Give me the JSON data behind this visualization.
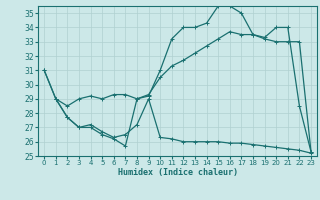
{
  "title": "",
  "xlabel": "Humidex (Indice chaleur)",
  "ylabel": "",
  "bg_color": "#cce8e8",
  "line_color": "#1a7070",
  "grid_color": "#b0d0d0",
  "xlim": [
    -0.5,
    23.5
  ],
  "ylim": [
    25,
    35.5
  ],
  "yticks": [
    25,
    26,
    27,
    28,
    29,
    30,
    31,
    32,
    33,
    34,
    35
  ],
  "xticks": [
    0,
    1,
    2,
    3,
    4,
    5,
    6,
    7,
    8,
    9,
    10,
    11,
    12,
    13,
    14,
    15,
    16,
    17,
    18,
    19,
    20,
    21,
    22,
    23
  ],
  "line1_x": [
    0,
    1,
    2,
    3,
    4,
    5,
    6,
    7,
    8,
    9,
    10,
    11,
    12,
    13,
    14,
    15,
    16,
    17,
    18,
    19,
    20,
    21,
    22,
    23
  ],
  "line1_y": [
    31,
    29,
    27.7,
    27,
    27,
    26.5,
    26.2,
    25.7,
    29,
    29.2,
    31,
    33.2,
    34,
    34,
    34.3,
    35.5,
    35.5,
    35,
    33.5,
    33.3,
    34,
    34,
    28.5,
    25.3
  ],
  "line2_x": [
    0,
    1,
    2,
    3,
    4,
    5,
    6,
    7,
    8,
    9,
    10,
    11,
    12,
    13,
    14,
    15,
    16,
    17,
    18,
    19,
    20,
    21,
    22,
    23
  ],
  "line2_y": [
    31,
    29,
    28.5,
    29,
    29.2,
    29,
    29.3,
    29.3,
    29,
    29.3,
    30.5,
    31.3,
    31.7,
    32.2,
    32.7,
    33.2,
    33.7,
    33.5,
    33.5,
    33.2,
    33,
    33,
    33,
    25.3
  ],
  "line3_x": [
    1,
    2,
    3,
    4,
    5,
    6,
    7,
    8,
    9,
    10,
    11,
    12,
    13,
    14,
    15,
    16,
    17,
    18,
    19,
    20,
    21,
    22,
    23
  ],
  "line3_y": [
    29,
    27.7,
    27,
    27.2,
    26.7,
    26.3,
    26.5,
    27.2,
    29,
    26.3,
    26.2,
    26.0,
    26.0,
    26.0,
    26.0,
    25.9,
    25.9,
    25.8,
    25.7,
    25.6,
    25.5,
    25.4,
    25.2
  ]
}
